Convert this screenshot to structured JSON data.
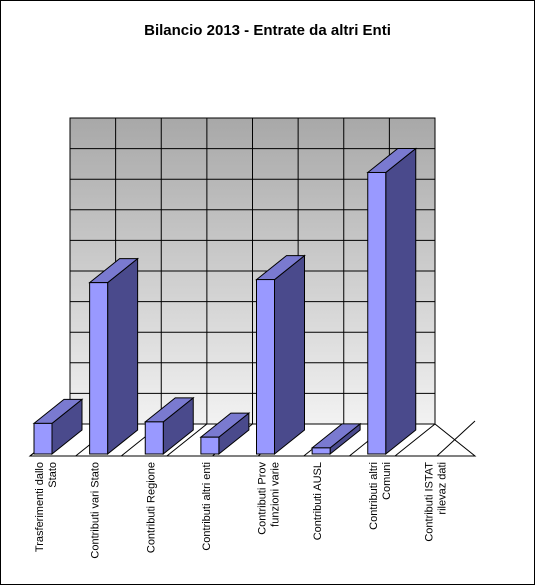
{
  "chart_data": {
    "type": "bar",
    "title": "Bilancio 2013 - Entrate da altri Enti",
    "categories": [
      [
        "Trasferimenti dallo",
        "Stato"
      ],
      [
        "Contributi vari Stato"
      ],
      [
        "Contributi Regione"
      ],
      [
        "Contributi altri enti"
      ],
      [
        "Contributi Prov",
        "funzioni varie"
      ],
      [
        "Contributi AUSL"
      ],
      [
        "Contributi altri",
        "Comuni"
      ],
      [
        "Contributi ISTAT",
        "rilevaz dati"
      ]
    ],
    "values": [
      1,
      5.6,
      1.05,
      0.55,
      5.7,
      0.2,
      9.2,
      0
    ],
    "ylim": [
      0,
      10
    ],
    "grid": true,
    "legend": "none",
    "colors": {
      "bar_front": "#9999ff",
      "bar_side": "#4a4a8c",
      "bar_top": "#7a7ad0",
      "wall_top": "#a8a8a8",
      "wall_bottom": "#f2f2f2",
      "floor": "#ffffff",
      "grid": "#000000"
    }
  }
}
